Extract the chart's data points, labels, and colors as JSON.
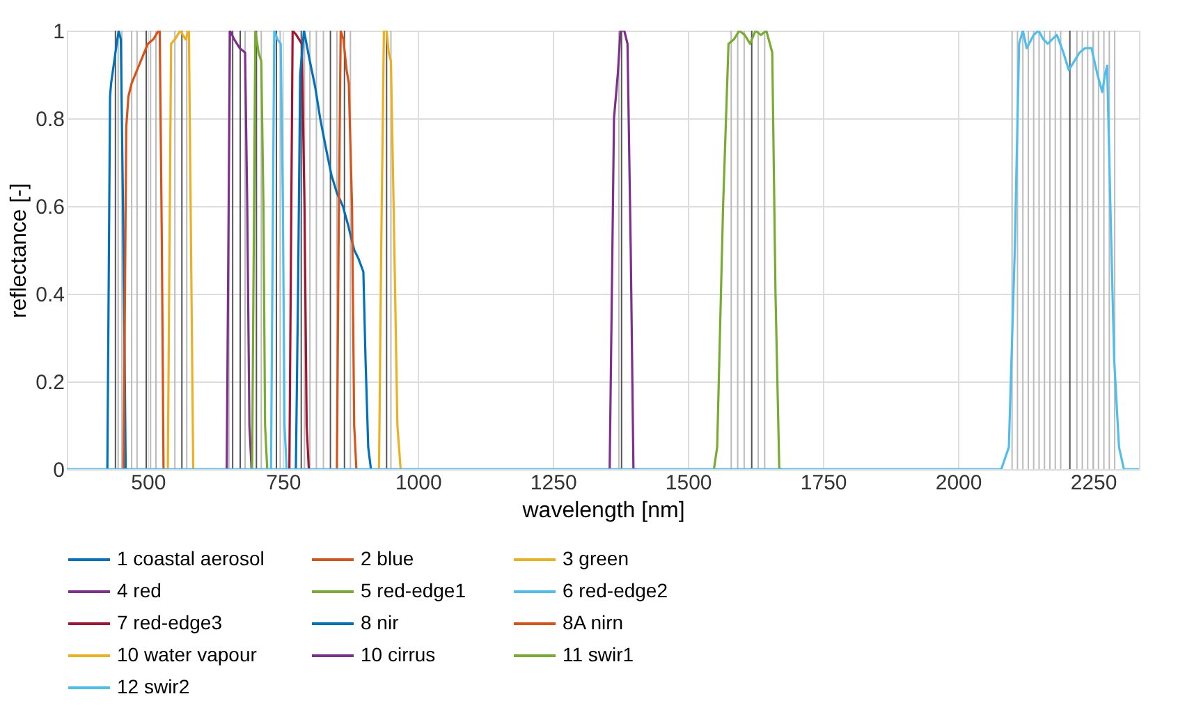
{
  "chart_data": {
    "type": "line",
    "xlabel": "wavelength [nm]",
    "ylabel": "reflectance [-]",
    "xlim": [
      350,
      2335
    ],
    "ylim": [
      0,
      1
    ],
    "xticks": [
      500,
      750,
      1000,
      1250,
      1500,
      1750,
      2000,
      2250
    ],
    "yticks": [
      0,
      0.2,
      0.4,
      0.6,
      0.8,
      1
    ],
    "grid": true,
    "legend": "bottom",
    "line_style": "solid",
    "marker": "none",
    "series": [
      {
        "name": "1 coastal aerosol",
        "color": "#0072bd",
        "x": [
          425,
          430,
          432,
          440,
          446,
          450,
          455,
          459,
          462
        ],
        "values": [
          0,
          0.85,
          0.88,
          0.95,
          1,
          0.98,
          0.5,
          0,
          0
        ]
      },
      {
        "name": "2 blue",
        "color": "#d95319",
        "x": [
          455,
          457,
          460,
          464,
          470,
          480,
          490,
          500,
          510,
          520,
          522,
          526,
          529,
          532
        ],
        "values": [
          0,
          0.3,
          0.78,
          0.85,
          0.88,
          0.91,
          0.94,
          0.97,
          0.98,
          1,
          1,
          0.5,
          0,
          0
        ]
      },
      {
        "name": "3 green",
        "color": "#edb120",
        "x": [
          537,
          540,
          543,
          550,
          560,
          570,
          576,
          580,
          584
        ],
        "values": [
          0,
          0.5,
          0.97,
          0.98,
          1,
          0.98,
          1,
          0.5,
          0
        ]
      },
      {
        "name": "4 red",
        "color": "#7e2f8e",
        "x": [
          646,
          649,
          652,
          660,
          670,
          680,
          684,
          688,
          692
        ],
        "values": [
          0,
          0.5,
          1,
          0.98,
          0.96,
          0.95,
          0.6,
          0.1,
          0
        ]
      },
      {
        "name": "5 red-edge1",
        "color": "#77ac30",
        "x": [
          693,
          696,
          699,
          705,
          710,
          714,
          717,
          721
        ],
        "values": [
          0,
          0.5,
          1,
          0.95,
          0.93,
          0.6,
          0.1,
          0
        ]
      },
      {
        "name": "6 red-edge2",
        "color": "#4dbeee",
        "x": [
          728,
          731,
          734,
          740,
          746,
          750,
          753,
          757
        ],
        "values": [
          0,
          0.5,
          1,
          0.98,
          0.97,
          0.6,
          0.1,
          0
        ]
      },
      {
        "name": "7 red-edge3",
        "color": "#a2142f",
        "x": [
          762,
          765,
          768,
          775,
          785,
          790,
          794,
          798
        ],
        "values": [
          0,
          0.5,
          1,
          0.99,
          0.97,
          0.6,
          0.1,
          0
        ]
      },
      {
        "name": "8 nir",
        "color": "#0072bd",
        "x": [
          774,
          778,
          782,
          789,
          800,
          810,
          819,
          830,
          840,
          850,
          861,
          870,
          882,
          890,
          899,
          903,
          908,
          913
        ],
        "values": [
          0,
          0.4,
          0.9,
          1,
          0.93,
          0.87,
          0.8,
          0.73,
          0.67,
          0.63,
          0.6,
          0.56,
          0.5,
          0.48,
          0.45,
          0.25,
          0.05,
          0
        ]
      },
      {
        "name": "8A nirn",
        "color": "#d95319",
        "x": [
          850,
          853,
          857,
          862,
          868,
          872,
          878,
          882,
          886
        ],
        "values": [
          0,
          0.5,
          1,
          0.98,
          0.91,
          0.88,
          0.6,
          0.1,
          0
        ]
      },
      {
        "name": "10 water vapour",
        "color": "#edb120",
        "x": [
          928,
          932,
          937,
          942,
          946,
          950,
          955,
          962,
          968
        ],
        "values": [
          0,
          0.5,
          1,
          1,
          0.95,
          0.93,
          0.6,
          0.1,
          0
        ]
      },
      {
        "name": "10 cirrus",
        "color": "#7e2f8e",
        "x": [
          1355,
          1360,
          1363,
          1370,
          1375,
          1382,
          1388,
          1394,
          1399,
          1404
        ],
        "values": [
          0,
          0.5,
          0.8,
          0.9,
          1,
          1,
          0.97,
          0.5,
          0,
          0
        ]
      },
      {
        "name": "11 swir1",
        "color": "#77ac30",
        "x": [
          1548,
          1554,
          1565,
          1575,
          1585,
          1595,
          1605,
          1615,
          1625,
          1635,
          1645,
          1656,
          1662,
          1669,
          1675
        ],
        "values": [
          0,
          0.05,
          0.6,
          0.97,
          0.98,
          1,
          0.99,
          0.97,
          1,
          0.99,
          1,
          0.95,
          0.4,
          0,
          0
        ]
      },
      {
        "name": "12 swir2",
        "color": "#4dbeee",
        "x": [
          350,
          2080,
          2094,
          2105,
          2113,
          2120,
          2127,
          2140,
          2149,
          2158,
          2166,
          2174,
          2183,
          2195,
          2205,
          2215,
          2225,
          2235,
          2247,
          2258,
          2267,
          2272,
          2276,
          2282,
          2289,
          2298,
          2307,
          2335
        ],
        "values": [
          0,
          0,
          0.05,
          0.5,
          0.97,
          1,
          0.96,
          0.99,
          1,
          0.98,
          0.97,
          0.98,
          0.99,
          0.95,
          0.91,
          0.93,
          0.95,
          0.96,
          0.96,
          0.9,
          0.86,
          0.9,
          0.92,
          0.6,
          0.25,
          0.05,
          0,
          0
        ]
      }
    ],
    "ref_lines": [
      {
        "axis": "x",
        "value": 440,
        "color": "#555555"
      },
      {
        "axis": "x",
        "value": 497,
        "color": "#555555"
      },
      {
        "axis": "x",
        "value": 563,
        "color": "#555555"
      },
      {
        "axis": "x",
        "value": 657,
        "color": "#555555"
      },
      {
        "axis": "x",
        "value": 671,
        "color": "#555555"
      },
      {
        "axis": "x",
        "value": 701,
        "color": "#555555"
      },
      {
        "axis": "x",
        "value": 738,
        "color": "#555555"
      },
      {
        "axis": "x",
        "value": 784,
        "color": "#555555"
      },
      {
        "axis": "x",
        "value": 838,
        "color": "#555555"
      },
      {
        "axis": "x",
        "value": 864,
        "color": "#555555"
      },
      {
        "axis": "x",
        "value": 942,
        "color": "#555555"
      },
      {
        "axis": "x",
        "value": 1377,
        "color": "#555555"
      },
      {
        "axis": "x",
        "value": 1618,
        "color": "#555555"
      },
      {
        "axis": "x",
        "value": 2207,
        "color": "#555555"
      },
      {
        "axis": "x",
        "value": 445,
        "color": "#bbbbbb"
      },
      {
        "axis": "x",
        "value": 452,
        "color": "#bbbbbb"
      },
      {
        "axis": "x",
        "value": 470,
        "color": "#bbbbbb"
      },
      {
        "axis": "x",
        "value": 480,
        "color": "#bbbbbb"
      },
      {
        "axis": "x",
        "value": 505,
        "color": "#bbbbbb"
      },
      {
        "axis": "x",
        "value": 515,
        "color": "#bbbbbb"
      },
      {
        "axis": "x",
        "value": 550,
        "color": "#bbbbbb"
      },
      {
        "axis": "x",
        "value": 572,
        "color": "#bbbbbb"
      },
      {
        "axis": "x",
        "value": 650,
        "color": "#bbbbbb"
      },
      {
        "axis": "x",
        "value": 680,
        "color": "#bbbbbb"
      },
      {
        "axis": "x",
        "value": 710,
        "color": "#bbbbbb"
      },
      {
        "axis": "x",
        "value": 745,
        "color": "#bbbbbb"
      },
      {
        "axis": "x",
        "value": 790,
        "color": "#bbbbbb"
      },
      {
        "axis": "x",
        "value": 800,
        "color": "#bbbbbb"
      },
      {
        "axis": "x",
        "value": 812,
        "color": "#bbbbbb"
      },
      {
        "axis": "x",
        "value": 825,
        "color": "#bbbbbb"
      },
      {
        "axis": "x",
        "value": 850,
        "color": "#bbbbbb"
      },
      {
        "axis": "x",
        "value": 875,
        "color": "#bbbbbb"
      },
      {
        "axis": "x",
        "value": 950,
        "color": "#bbbbbb"
      },
      {
        "axis": "x",
        "value": 1372,
        "color": "#bbbbbb"
      },
      {
        "axis": "x",
        "value": 1580,
        "color": "#bbbbbb"
      },
      {
        "axis": "x",
        "value": 1592,
        "color": "#bbbbbb"
      },
      {
        "axis": "x",
        "value": 1604,
        "color": "#bbbbbb"
      },
      {
        "axis": "x",
        "value": 1630,
        "color": "#bbbbbb"
      },
      {
        "axis": "x",
        "value": 1642,
        "color": "#bbbbbb"
      },
      {
        "axis": "x",
        "value": 2100,
        "color": "#bbbbbb"
      },
      {
        "axis": "x",
        "value": 2110,
        "color": "#bbbbbb"
      },
      {
        "axis": "x",
        "value": 2120,
        "color": "#bbbbbb"
      },
      {
        "axis": "x",
        "value": 2130,
        "color": "#bbbbbb"
      },
      {
        "axis": "x",
        "value": 2140,
        "color": "#bbbbbb"
      },
      {
        "axis": "x",
        "value": 2150,
        "color": "#bbbbbb"
      },
      {
        "axis": "x",
        "value": 2160,
        "color": "#bbbbbb"
      },
      {
        "axis": "x",
        "value": 2170,
        "color": "#bbbbbb"
      },
      {
        "axis": "x",
        "value": 2180,
        "color": "#bbbbbb"
      },
      {
        "axis": "x",
        "value": 2190,
        "color": "#bbbbbb"
      },
      {
        "axis": "x",
        "value": 2220,
        "color": "#bbbbbb"
      },
      {
        "axis": "x",
        "value": 2230,
        "color": "#bbbbbb"
      },
      {
        "axis": "x",
        "value": 2240,
        "color": "#bbbbbb"
      },
      {
        "axis": "x",
        "value": 2250,
        "color": "#bbbbbb"
      },
      {
        "axis": "x",
        "value": 2260,
        "color": "#bbbbbb"
      },
      {
        "axis": "x",
        "value": 2270,
        "color": "#bbbbbb"
      },
      {
        "axis": "x",
        "value": 2280,
        "color": "#bbbbbb"
      },
      {
        "axis": "x",
        "value": 2290,
        "color": "#bbbbbb"
      }
    ]
  }
}
